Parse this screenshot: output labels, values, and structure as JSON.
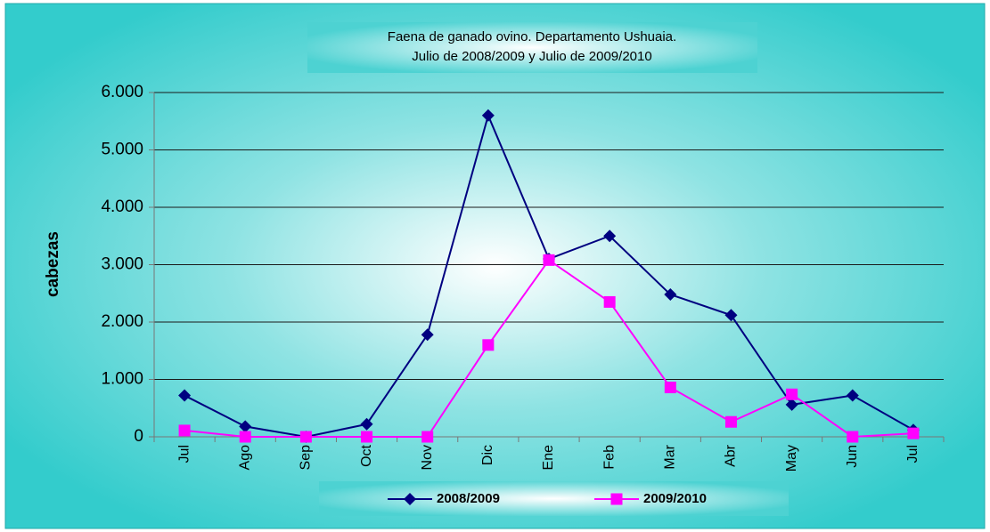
{
  "chart_data": {
    "type": "line",
    "title": [
      "Faena de ganado ovino. Departamento Ushuaia.",
      "Julio de 2008/2009 y Julio de 2009/2010"
    ],
    "y_label": "cabezas",
    "categories": [
      "Jul",
      "Ago",
      "Sep",
      "Oct",
      "Nov",
      "Dic",
      "Ene",
      "Feb",
      "Mar",
      "Abr",
      "May",
      "Jun",
      "Jul"
    ],
    "series": [
      {
        "name": "2008/2009",
        "color": "#000080",
        "marker": "diamond",
        "values": [
          720,
          180,
          0,
          220,
          1780,
          5600,
          3100,
          3500,
          2480,
          2120,
          560,
          720,
          120
        ]
      },
      {
        "name": "2009/2010",
        "color": "#ff00ff",
        "marker": "square",
        "values": [
          110,
          0,
          0,
          0,
          0,
          1600,
          3080,
          2350,
          860,
          260,
          740,
          0,
          60
        ]
      }
    ],
    "ylim": [
      0,
      6000
    ],
    "yticks": [
      0,
      {
        "value": 1000,
        "label": "1.000"
      },
      {
        "value": 2000,
        "label": "2.000"
      },
      {
        "value": 3000,
        "label": "3.000"
      },
      {
        "value": 4000,
        "label": "4.000"
      },
      {
        "value": 5000,
        "label": "5.000"
      },
      {
        "value": 6000,
        "label": "6.000"
      }
    ],
    "grid": true,
    "legend": "bottom"
  }
}
